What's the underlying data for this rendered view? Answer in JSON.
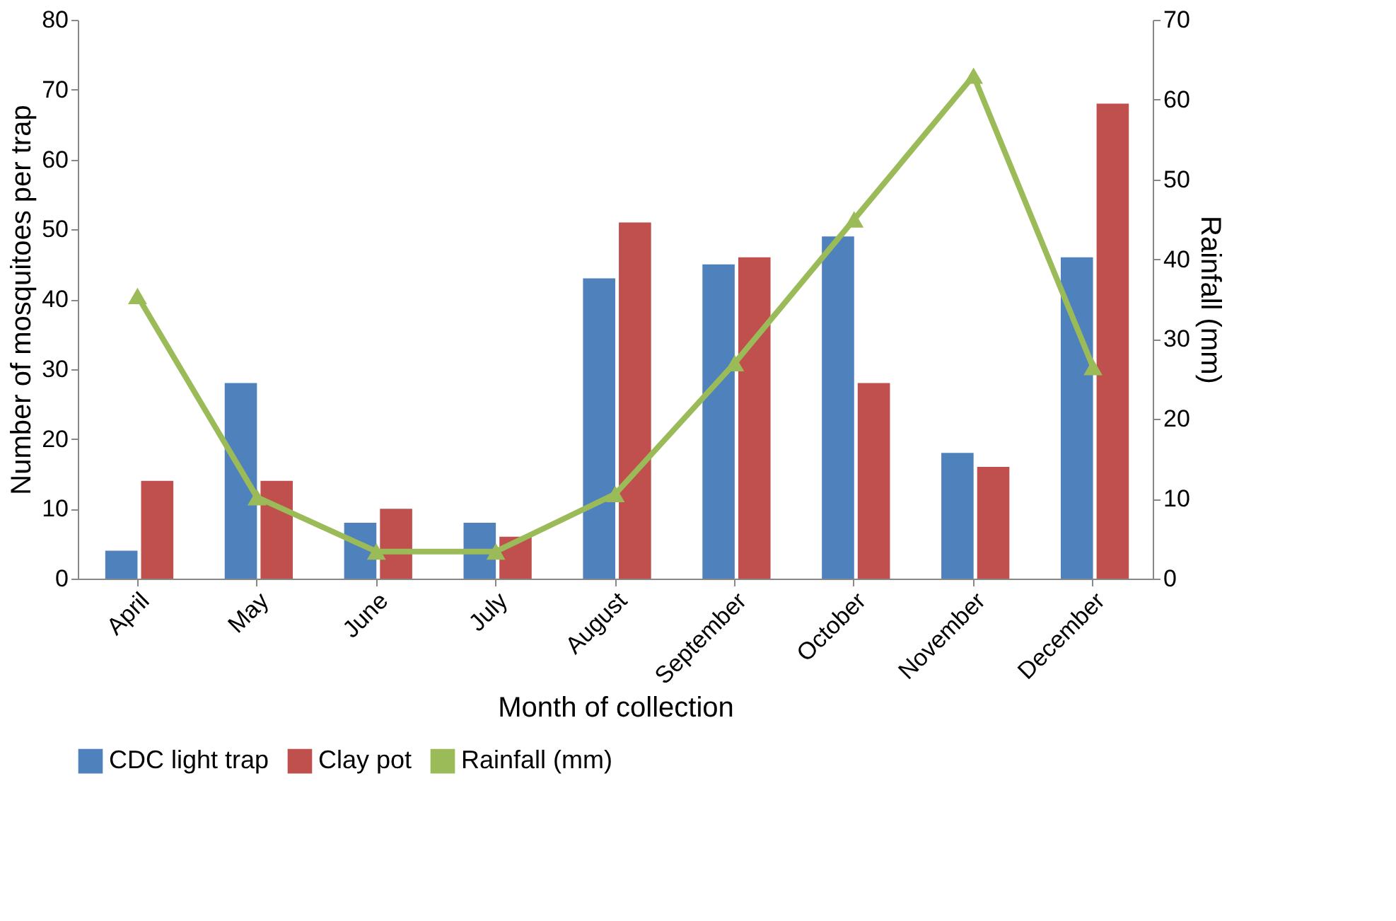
{
  "chart_data": {
    "type": "bar",
    "xlabel": "Month of collection",
    "ylabel": "Number of mosquitoes per trap",
    "y2label": "Rainfall (mm)",
    "categories": [
      "April",
      "May",
      "June",
      "July",
      "August",
      "September",
      "October",
      "November",
      "December"
    ],
    "series": [
      {
        "name": "CDC light trap",
        "color": "#4f81bd",
        "values": [
          4,
          28,
          8,
          8,
          43,
          45,
          49,
          18,
          46
        ]
      },
      {
        "name": "Clay pot",
        "color": "#c0504d",
        "values": [
          14,
          14,
          10,
          6,
          51,
          46,
          28,
          16,
          68
        ]
      },
      {
        "name": "Rainfall (mm)",
        "type": "line",
        "axis": "y2",
        "color": "#9bbb59",
        "marker": "triangle",
        "line_style": "solid",
        "values": [
          35.4,
          10.2,
          3.4,
          3.4,
          10.6,
          27,
          45,
          63,
          26.5
        ]
      }
    ],
    "ylim": [
      0,
      80
    ],
    "yticks": [
      0,
      10,
      20,
      30,
      40,
      50,
      60,
      70,
      80
    ],
    "y2lim": [
      0,
      70
    ],
    "y2ticks": [
      0,
      10,
      20,
      30,
      40,
      50,
      60,
      70
    ],
    "grid": false,
    "legend": "bottom"
  }
}
